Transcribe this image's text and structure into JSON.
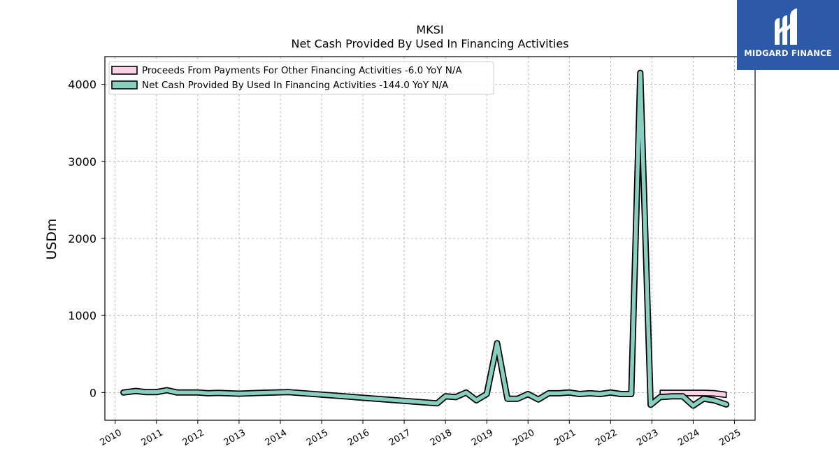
{
  "brand": {
    "name": "MIDGARD FINANCE",
    "bg_color": "#2c5aa8",
    "icon": "midgard-m-logo-icon"
  },
  "chart_data": {
    "type": "line",
    "title": "MKSI",
    "subtitle": "Net Cash Provided By Used In Financing Activities",
    "xlabel": "",
    "ylabel": "USDm",
    "xlim": [
      2009.75,
      2025.5
    ],
    "ylim": [
      -360,
      4360
    ],
    "x_ticks": [
      "2010",
      "2011",
      "2012",
      "2013",
      "2014",
      "2015",
      "2016",
      "2017",
      "2018",
      "2019",
      "2020",
      "2021",
      "2022",
      "2023",
      "2024",
      "2025"
    ],
    "y_ticks": [
      0,
      1000,
      2000,
      3000,
      4000
    ],
    "y_tick_labels": [
      "0",
      "1000",
      "2000",
      "3000",
      "4000"
    ],
    "grid": true,
    "legend_position": "top-left",
    "series": [
      {
        "name": "Proceeds From Payments For Other Financing Activities",
        "legend_label": "Proceeds From Payments For Other Financing Activities  -6.0 YoY N/A",
        "color": "#fbd3e6",
        "kind": "band",
        "x": [
          2023.2,
          2023.5,
          2023.75,
          2024.0,
          2024.25,
          2024.5,
          2024.8
        ],
        "y": [
          -6,
          -6,
          -6,
          -6,
          -6,
          -10,
          -30
        ]
      },
      {
        "name": "Net Cash Provided By Used In Financing Activities",
        "legend_label": "Net Cash Provided By Used In Financing Activities  -144.0 YoY N/A",
        "color": "#88cfc0",
        "kind": "line",
        "x": [
          2010.2,
          2010.5,
          2010.75,
          2011.0,
          2011.25,
          2011.5,
          2012.0,
          2012.25,
          2012.5,
          2013.0,
          2013.5,
          2014.2,
          2017.8,
          2018.0,
          2018.25,
          2018.5,
          2018.75,
          2019.0,
          2019.25,
          2019.5,
          2019.75,
          2020.0,
          2020.25,
          2020.5,
          2020.75,
          2021.0,
          2021.25,
          2021.5,
          2021.75,
          2022.0,
          2022.25,
          2022.5,
          2022.72,
          2022.97,
          2023.2,
          2023.5,
          2023.75,
          2024.0,
          2024.25,
          2024.5,
          2024.8
        ],
        "y": [
          0,
          20,
          5,
          5,
          30,
          0,
          0,
          -10,
          -5,
          -15,
          -5,
          5,
          -140,
          -50,
          -60,
          0,
          -100,
          -20,
          640,
          -80,
          -80,
          -20,
          -90,
          -10,
          -10,
          0,
          -20,
          -10,
          -20,
          0,
          -20,
          -20,
          4150,
          -160,
          -60,
          -50,
          -50,
          -170,
          -80,
          -100,
          -155
        ]
      }
    ]
  }
}
